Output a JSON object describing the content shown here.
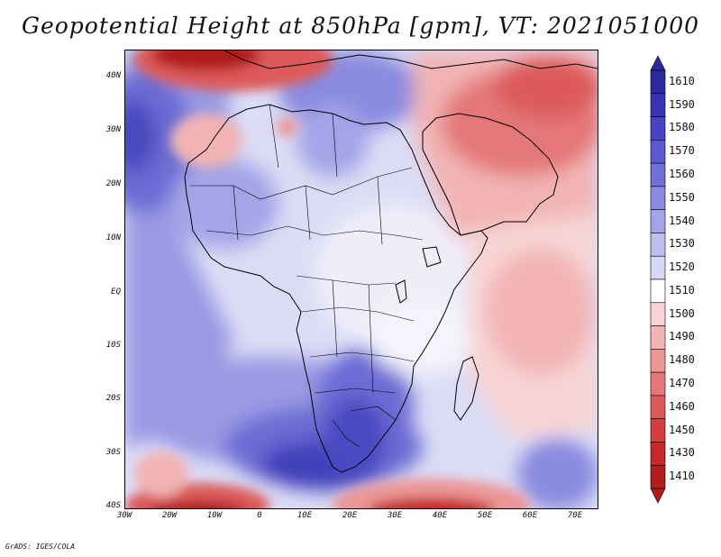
{
  "title": "Geopotential Height at 850hPa [gpm], VT: 2021051000",
  "credit": "GrADS: IGES/COLA",
  "map": {
    "lat_labels": [
      "40N",
      "30N",
      "20N",
      "10N",
      "EQ",
      "10S",
      "20S",
      "30S",
      "40S"
    ],
    "lon_labels": [
      "30W",
      "20W",
      "10W",
      "0",
      "10E",
      "20E",
      "30E",
      "40E",
      "50E",
      "60E",
      "70E"
    ]
  },
  "colorbar": {
    "levels": [
      "1610",
      "1590",
      "1580",
      "1570",
      "1560",
      "1550",
      "1540",
      "1530",
      "1520",
      "1510",
      "1500",
      "1490",
      "1480",
      "1470",
      "1460",
      "1450",
      "1430",
      "1410"
    ],
    "colors": [
      "#2a2a9e",
      "#3535b4",
      "#4545c6",
      "#5a5ad0",
      "#7070d8",
      "#8a8ae0",
      "#a4a4e8",
      "#bebef0",
      "#d8d8f6",
      "#ffffff",
      "#f8d4d4",
      "#f2b4b4",
      "#ec9696",
      "#e47878",
      "#dc5a5a",
      "#d23e3e",
      "#c42a2a",
      "#b01e1e"
    ]
  }
}
